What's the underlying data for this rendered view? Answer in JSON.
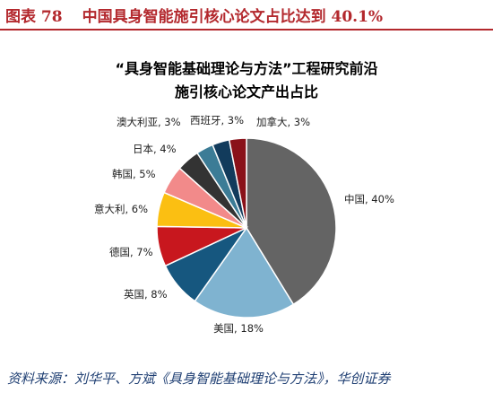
{
  "figure": {
    "number": "图表 78",
    "title": "中国具身智能施引核心论文占比达到 40.1%"
  },
  "source": "资料来源：刘华平、方斌《具身智能基础理论与方法》，华创证券",
  "colors": {
    "accent": "#b3282d",
    "source_text": "#1f3f73"
  },
  "chart_data": {
    "type": "pie",
    "title": "“具身智能基础理论与方法”工程研究前沿施引核心论文产出占比",
    "title_lines": [
      "“具身智能基础理论与方法”工程研究前沿",
      "施引核心论文产出占比"
    ],
    "start_angle_deg": 0,
    "direction": "clockwise",
    "slices": [
      {
        "label": "中国",
        "value": 40,
        "display": "中国, 40%",
        "color": "#646464"
      },
      {
        "label": "美国",
        "value": 18,
        "display": "美国, 18%",
        "color": "#7fb3d0"
      },
      {
        "label": "英国",
        "value": 8,
        "display": "英国, 8%",
        "color": "#16577f"
      },
      {
        "label": "德国",
        "value": 7,
        "display": "德国, 7%",
        "color": "#c8171e"
      },
      {
        "label": "意大利",
        "value": 6,
        "display": "意大利, 6%",
        "color": "#fbbf12"
      },
      {
        "label": "韩国",
        "value": 5,
        "display": "韩国, 5%",
        "color": "#f28a8a"
      },
      {
        "label": "日本",
        "value": 4,
        "display": "日本, 4%",
        "color": "#333333"
      },
      {
        "label": "澳大利亚",
        "value": 3,
        "display": "澳大利亚, 3%",
        "color": "#3c7c96"
      },
      {
        "label": "西班牙",
        "value": 3,
        "display": "西班牙, 3%",
        "color": "#123b5c"
      },
      {
        "label": "加拿大",
        "value": 3,
        "display": "加拿大, 3%",
        "color": "#8a1119"
      }
    ]
  }
}
